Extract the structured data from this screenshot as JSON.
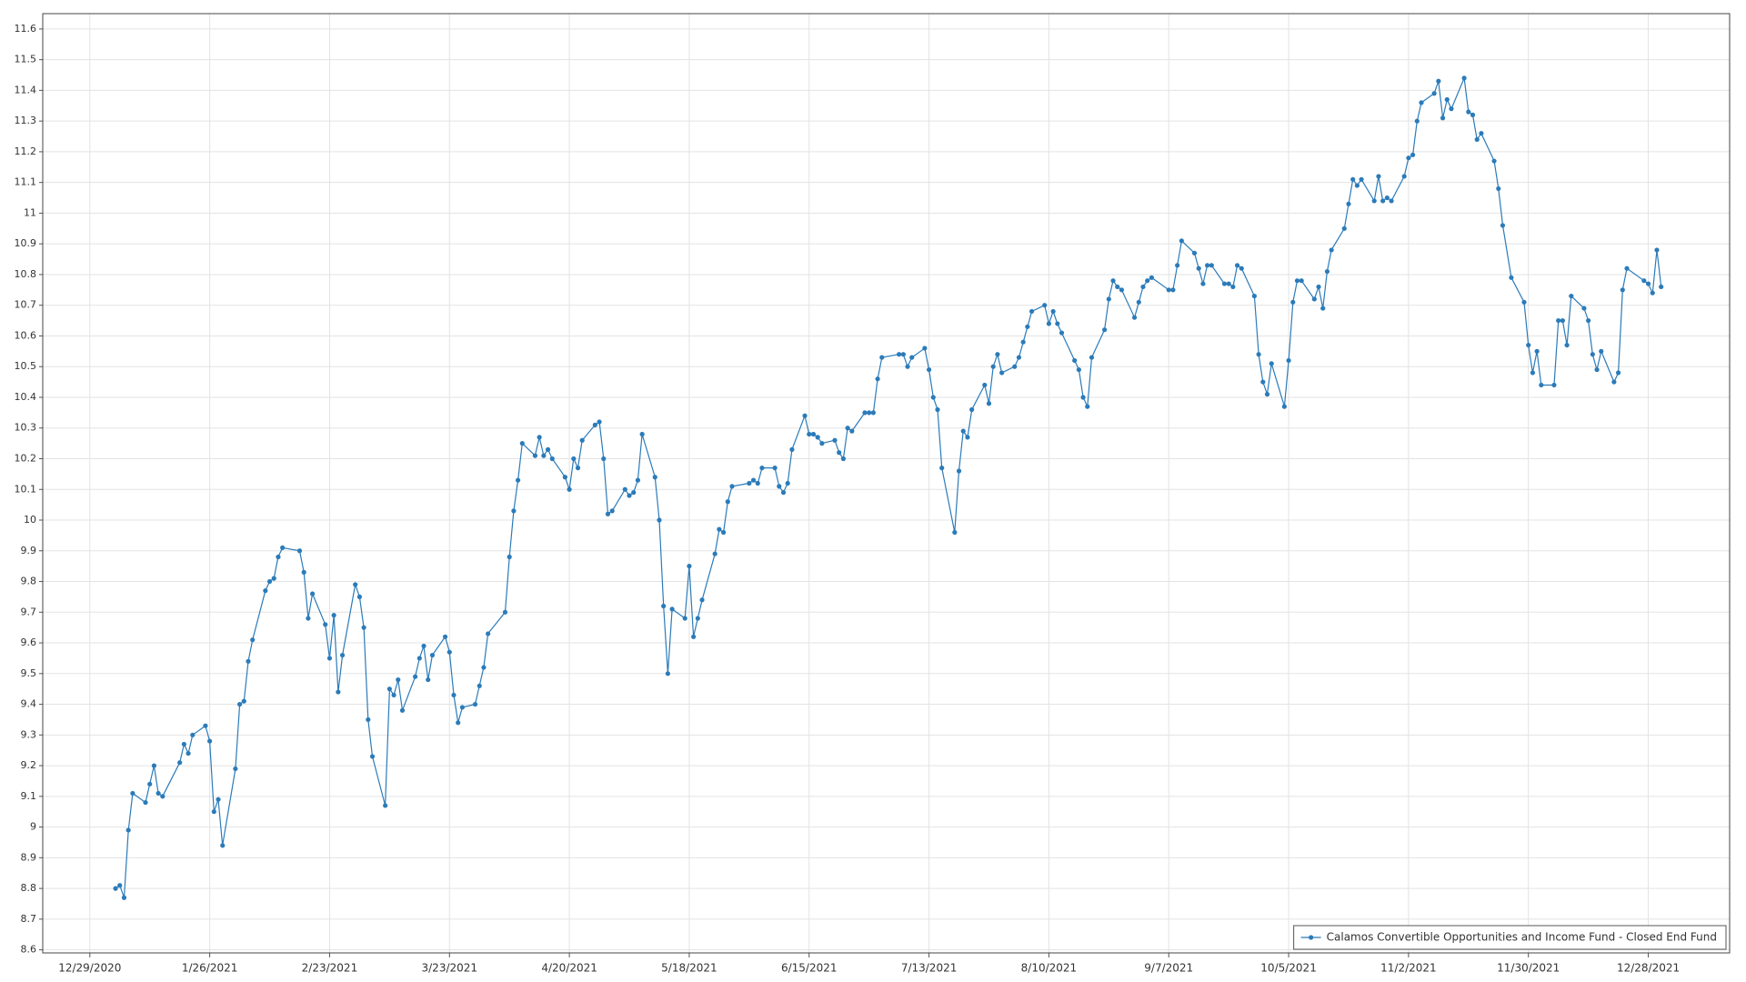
{
  "chart_data": {
    "type": "line",
    "x": [
      "1/4/2021",
      "1/5/2021",
      "1/6/2021",
      "1/7/2021",
      "1/8/2021",
      "1/11/2021",
      "1/12/2021",
      "1/13/2021",
      "1/14/2021",
      "1/15/2021",
      "1/19/2021",
      "1/20/2021",
      "1/21/2021",
      "1/22/2021",
      "1/25/2021",
      "1/26/2021",
      "1/27/2021",
      "1/28/2021",
      "1/29/2021",
      "2/1/2021",
      "2/2/2021",
      "2/3/2021",
      "2/4/2021",
      "2/5/2021",
      "2/8/2021",
      "2/9/2021",
      "2/10/2021",
      "2/11/2021",
      "2/12/2021",
      "2/16/2021",
      "2/17/2021",
      "2/18/2021",
      "2/19/2021",
      "2/22/2021",
      "2/23/2021",
      "2/24/2021",
      "2/25/2021",
      "2/26/2021",
      "3/1/2021",
      "3/2/2021",
      "3/3/2021",
      "3/4/2021",
      "3/5/2021",
      "3/8/2021",
      "3/9/2021",
      "3/10/2021",
      "3/11/2021",
      "3/12/2021",
      "3/15/2021",
      "3/16/2021",
      "3/17/2021",
      "3/18/2021",
      "3/19/2021",
      "3/22/2021",
      "3/23/2021",
      "3/24/2021",
      "3/25/2021",
      "3/26/2021",
      "3/29/2021",
      "3/30/2021",
      "3/31/2021",
      "4/1/2021",
      "4/5/2021",
      "4/6/2021",
      "4/7/2021",
      "4/8/2021",
      "4/9/2021",
      "4/12/2021",
      "4/13/2021",
      "4/14/2021",
      "4/15/2021",
      "4/16/2021",
      "4/19/2021",
      "4/20/2021",
      "4/21/2021",
      "4/22/2021",
      "4/23/2021",
      "4/26/2021",
      "4/27/2021",
      "4/28/2021",
      "4/29/2021",
      "4/30/2021",
      "5/3/2021",
      "5/4/2021",
      "5/5/2021",
      "5/6/2021",
      "5/7/2021",
      "5/10/2021",
      "5/11/2021",
      "5/12/2021",
      "5/13/2021",
      "5/14/2021",
      "5/17/2021",
      "5/18/2021",
      "5/19/2021",
      "5/20/2021",
      "5/21/2021",
      "5/24/2021",
      "5/25/2021",
      "5/26/2021",
      "5/27/2021",
      "5/28/2021",
      "6/1/2021",
      "6/2/2021",
      "6/3/2021",
      "6/4/2021",
      "6/7/2021",
      "6/8/2021",
      "6/9/2021",
      "6/10/2021",
      "6/11/2021",
      "6/14/2021",
      "6/15/2021",
      "6/16/2021",
      "6/17/2021",
      "6/18/2021",
      "6/21/2021",
      "6/22/2021",
      "6/23/2021",
      "6/24/2021",
      "6/25/2021",
      "6/28/2021",
      "6/29/2021",
      "6/30/2021",
      "7/1/2021",
      "7/2/2021",
      "7/6/2021",
      "7/7/2021",
      "7/8/2021",
      "7/9/2021",
      "7/12/2021",
      "7/13/2021",
      "7/14/2021",
      "7/15/2021",
      "7/16/2021",
      "7/19/2021",
      "7/20/2021",
      "7/21/2021",
      "7/22/2021",
      "7/23/2021",
      "7/26/2021",
      "7/27/2021",
      "7/28/2021",
      "7/29/2021",
      "7/30/2021",
      "8/2/2021",
      "8/3/2021",
      "8/4/2021",
      "8/5/2021",
      "8/6/2021",
      "8/9/2021",
      "8/10/2021",
      "8/11/2021",
      "8/12/2021",
      "8/13/2021",
      "8/16/2021",
      "8/17/2021",
      "8/18/2021",
      "8/19/2021",
      "8/20/2021",
      "8/23/2021",
      "8/24/2021",
      "8/25/2021",
      "8/26/2021",
      "8/27/2021",
      "8/30/2021",
      "8/31/2021",
      "9/1/2021",
      "9/2/2021",
      "9/3/2021",
      "9/7/2021",
      "9/8/2021",
      "9/9/2021",
      "9/10/2021",
      "9/13/2021",
      "9/14/2021",
      "9/15/2021",
      "9/16/2021",
      "9/17/2021",
      "9/20/2021",
      "9/21/2021",
      "9/22/2021",
      "9/23/2021",
      "9/24/2021",
      "9/27/2021",
      "9/28/2021",
      "9/29/2021",
      "9/30/2021",
      "10/1/2021",
      "10/4/2021",
      "10/5/2021",
      "10/6/2021",
      "10/7/2021",
      "10/8/2021",
      "10/11/2021",
      "10/12/2021",
      "10/13/2021",
      "10/14/2021",
      "10/15/2021",
      "10/18/2021",
      "10/19/2021",
      "10/20/2021",
      "10/21/2021",
      "10/22/2021",
      "10/25/2021",
      "10/26/2021",
      "10/27/2021",
      "10/28/2021",
      "10/29/2021",
      "11/1/2021",
      "11/2/2021",
      "11/3/2021",
      "11/4/2021",
      "11/5/2021",
      "11/8/2021",
      "11/9/2021",
      "11/10/2021",
      "11/11/2021",
      "11/12/2021",
      "11/15/2021",
      "11/16/2021",
      "11/17/2021",
      "11/18/2021",
      "11/19/2021",
      "11/22/2021",
      "11/23/2021",
      "11/24/2021",
      "11/26/2021",
      "11/29/2021",
      "11/30/2021",
      "12/1/2021",
      "12/2/2021",
      "12/3/2021",
      "12/6/2021",
      "12/7/2021",
      "12/8/2021",
      "12/9/2021",
      "12/10/2021",
      "12/13/2021",
      "12/14/2021",
      "12/15/2021",
      "12/16/2021",
      "12/17/2021",
      "12/20/2021",
      "12/21/2021",
      "12/22/2021",
      "12/23/2021",
      "12/27/2021",
      "12/28/2021",
      "12/29/2021",
      "12/30/2021",
      "12/31/2021"
    ],
    "series": [
      {
        "name": "Calamos Convertible Opportunities and Income Fund - Closed End Fund",
        "color": "#2b7bb9",
        "values": [
          8.8,
          8.81,
          8.77,
          8.99,
          9.11,
          9.08,
          9.14,
          9.2,
          9.11,
          9.1,
          9.21,
          9.27,
          9.24,
          9.3,
          9.33,
          9.28,
          9.05,
          9.09,
          8.94,
          9.19,
          9.4,
          9.41,
          9.54,
          9.61,
          9.77,
          9.8,
          9.81,
          9.88,
          9.91,
          9.9,
          9.83,
          9.68,
          9.76,
          9.66,
          9.55,
          9.69,
          9.44,
          9.56,
          9.79,
          9.75,
          9.65,
          9.35,
          9.23,
          9.07,
          9.45,
          9.43,
          9.48,
          9.38,
          9.49,
          9.55,
          9.59,
          9.48,
          9.56,
          9.62,
          9.57,
          9.43,
          9.34,
          9.39,
          9.4,
          9.46,
          9.52,
          9.63,
          9.7,
          9.88,
          10.03,
          10.13,
          10.25,
          10.21,
          10.27,
          10.21,
          10.23,
          10.2,
          10.14,
          10.1,
          10.2,
          10.17,
          10.26,
          10.31,
          10.32,
          10.2,
          10.02,
          10.03,
          10.1,
          10.08,
          10.09,
          10.13,
          10.28,
          10.14,
          10.0,
          9.72,
          9.5,
          9.71,
          9.68,
          9.85,
          9.62,
          9.68,
          9.74,
          9.89,
          9.97,
          9.96,
          10.06,
          10.11,
          10.12,
          10.13,
          10.12,
          10.17,
          10.17,
          10.11,
          10.09,
          10.12,
          10.23,
          10.34,
          10.28,
          10.28,
          10.27,
          10.25,
          10.26,
          10.22,
          10.2,
          10.3,
          10.29,
          10.35,
          10.35,
          10.35,
          10.46,
          10.53,
          10.54,
          10.54,
          10.5,
          10.53,
          10.56,
          10.49,
          10.4,
          10.36,
          10.17,
          9.96,
          10.16,
          10.29,
          10.27,
          10.36,
          10.44,
          10.38,
          10.5,
          10.54,
          10.48,
          10.5,
          10.53,
          10.58,
          10.63,
          10.68,
          10.7,
          10.64,
          10.68,
          10.64,
          10.61,
          10.52,
          10.49,
          10.4,
          10.37,
          10.53,
          10.62,
          10.72,
          10.78,
          10.76,
          10.75,
          10.66,
          10.71,
          10.76,
          10.78,
          10.79,
          10.75,
          10.75,
          10.83,
          10.91,
          10.87,
          10.82,
          10.77,
          10.83,
          10.83,
          10.77,
          10.77,
          10.76,
          10.83,
          10.82,
          10.73,
          10.54,
          10.45,
          10.41,
          10.51,
          10.37,
          10.52,
          10.71,
          10.78,
          10.78,
          10.72,
          10.76,
          10.69,
          10.81,
          10.88,
          10.95,
          11.03,
          11.11,
          11.09,
          11.11,
          11.04,
          11.12,
          11.04,
          11.05,
          11.04,
          11.12,
          11.18,
          11.19,
          11.3,
          11.36,
          11.39,
          11.43,
          11.31,
          11.37,
          11.34,
          11.44,
          11.33,
          11.32,
          11.24,
          11.26,
          11.17,
          11.08,
          10.96,
          10.79,
          10.71,
          10.57,
          10.48,
          10.55,
          10.44,
          10.44,
          10.65,
          10.65,
          10.57,
          10.73,
          10.69,
          10.65,
          10.54,
          10.49,
          10.55,
          10.45,
          10.48,
          10.75,
          10.82,
          10.78,
          10.77,
          10.74,
          10.88,
          10.76
        ]
      }
    ],
    "xlim": [
      "12/18/2020",
      "1/16/2022"
    ],
    "xticks": [
      "12/29/2020",
      "1/26/2021",
      "2/23/2021",
      "3/23/2021",
      "4/20/2021",
      "5/18/2021",
      "6/15/2021",
      "7/13/2021",
      "8/10/2021",
      "9/7/2021",
      "10/5/2021",
      "11/2/2021",
      "11/30/2021",
      "12/28/2021"
    ],
    "ylim": [
      8.59,
      11.65
    ],
    "yticks": [
      8.6,
      8.7,
      8.8,
      8.9,
      9,
      9.1,
      9.2,
      9.3,
      9.4,
      9.5,
      9.6,
      9.7,
      9.8,
      9.9,
      10,
      10.1,
      10.2,
      10.3,
      10.4,
      10.5,
      10.6,
      10.7,
      10.8,
      10.9,
      11,
      11.1,
      11.2,
      11.3,
      11.4,
      11.5,
      11.6
    ],
    "grid": true,
    "legend": "lower right"
  }
}
